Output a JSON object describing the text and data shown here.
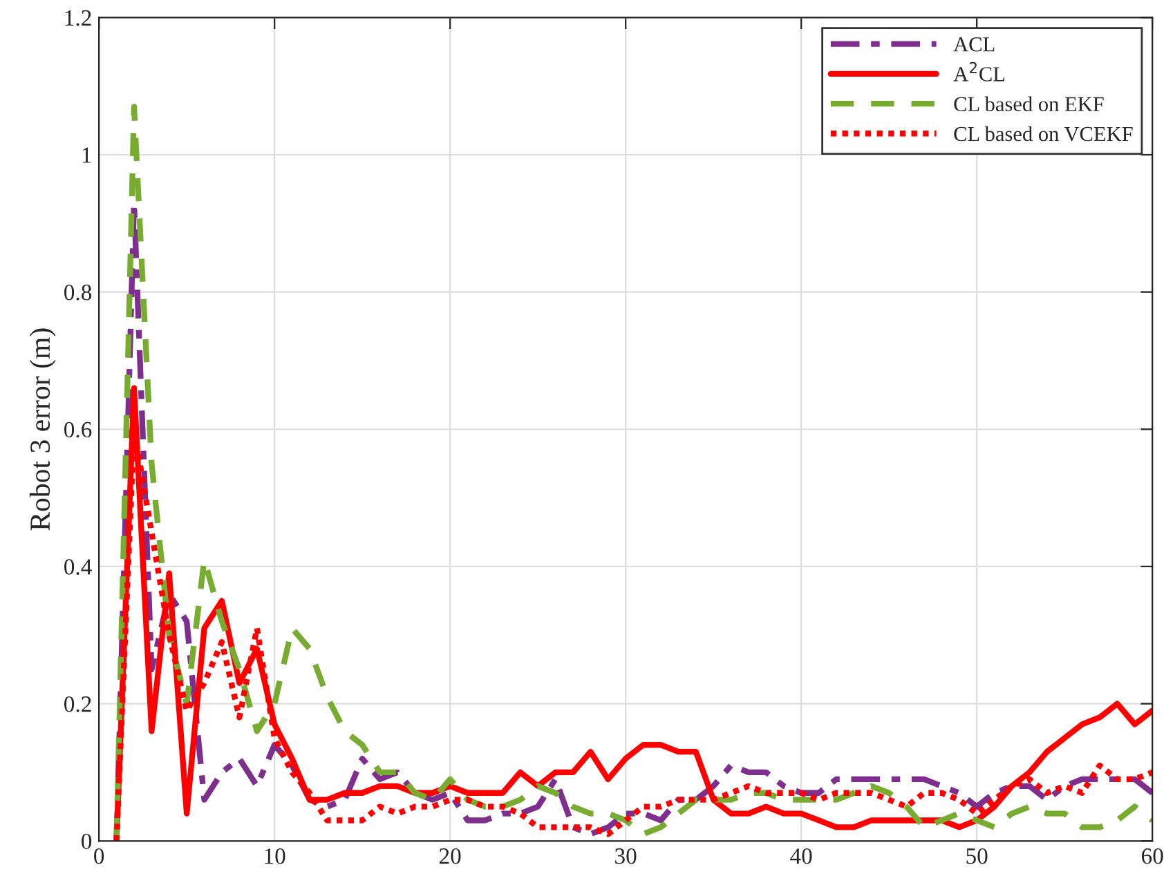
{
  "chart_data": {
    "type": "line",
    "ylabel": "Robot 3 error (m)",
    "x": [
      1,
      2,
      3,
      4,
      5,
      6,
      7,
      8,
      9,
      10,
      11,
      12,
      13,
      14,
      15,
      16,
      17,
      18,
      19,
      20,
      21,
      22,
      23,
      24,
      25,
      26,
      27,
      28,
      29,
      30,
      31,
      32,
      33,
      34,
      35,
      36,
      37,
      38,
      39,
      40,
      41,
      42,
      43,
      44,
      45,
      46,
      47,
      48,
      49,
      50,
      51,
      52,
      53,
      54,
      55,
      56,
      57,
      58,
      59,
      60
    ],
    "xlim": [
      0,
      60
    ],
    "xticks": [
      0,
      10,
      20,
      30,
      40,
      50,
      60
    ],
    "ylim": [
      0,
      1.2
    ],
    "yticks": [
      0,
      0.2,
      0.4,
      0.6,
      0.8,
      1,
      1.2
    ],
    "grid": true,
    "legend": "top right",
    "marker": "none",
    "series": [
      {
        "name": "ACL",
        "color": "#7e2f8e",
        "line_style": "dashdot",
        "values": [
          0.0,
          0.93,
          0.25,
          0.36,
          0.32,
          0.06,
          0.1,
          0.12,
          0.08,
          0.14,
          0.11,
          0.06,
          0.05,
          0.06,
          0.12,
          0.09,
          0.1,
          0.07,
          0.06,
          0.07,
          0.03,
          0.03,
          0.04,
          0.04,
          0.05,
          0.09,
          0.02,
          0.01,
          0.02,
          0.04,
          0.04,
          0.03,
          0.06,
          0.06,
          0.08,
          0.11,
          0.1,
          0.1,
          0.08,
          0.07,
          0.07,
          0.09,
          0.09,
          0.09,
          0.09,
          0.09,
          0.09,
          0.08,
          0.07,
          0.05,
          0.07,
          0.08,
          0.08,
          0.06,
          0.08,
          0.09,
          0.09,
          0.09,
          0.09,
          0.07
        ]
      },
      {
        "name": "A$^{2}$CL",
        "color": "#ff0000",
        "line_style": "solid",
        "values": [
          0.0,
          0.66,
          0.16,
          0.39,
          0.04,
          0.31,
          0.35,
          0.23,
          0.28,
          0.17,
          0.12,
          0.06,
          0.06,
          0.07,
          0.07,
          0.08,
          0.08,
          0.07,
          0.07,
          0.08,
          0.07,
          0.07,
          0.07,
          0.1,
          0.08,
          0.1,
          0.1,
          0.13,
          0.09,
          0.12,
          0.14,
          0.14,
          0.13,
          0.13,
          0.06,
          0.04,
          0.04,
          0.05,
          0.04,
          0.04,
          0.03,
          0.02,
          0.02,
          0.03,
          0.03,
          0.03,
          0.03,
          0.03,
          0.02,
          0.03,
          0.05,
          0.08,
          0.1,
          0.13,
          0.15,
          0.17,
          0.18,
          0.2,
          0.17,
          0.19
        ]
      },
      {
        "name": "CL based on EKF",
        "color": "#77ac30",
        "line_style": "dashed",
        "values": [
          0.0,
          1.07,
          0.55,
          0.3,
          0.2,
          0.41,
          0.32,
          0.25,
          0.16,
          0.2,
          0.31,
          0.28,
          0.21,
          0.16,
          0.14,
          0.1,
          0.1,
          0.07,
          0.06,
          0.09,
          0.06,
          0.05,
          0.05,
          0.06,
          0.08,
          0.07,
          0.05,
          0.04,
          0.04,
          0.03,
          0.01,
          0.02,
          0.04,
          0.06,
          0.06,
          0.06,
          0.07,
          0.07,
          0.06,
          0.06,
          0.06,
          0.06,
          0.07,
          0.08,
          0.07,
          0.05,
          0.02,
          0.03,
          0.04,
          0.03,
          0.02,
          0.04,
          0.05,
          0.04,
          0.04,
          0.02,
          0.02,
          0.03,
          0.05,
          0.03
        ]
      },
      {
        "name": "CL based on VCEKF",
        "color": "#ff0000",
        "line_style": "dotted",
        "values": [
          0.0,
          0.6,
          0.45,
          0.3,
          0.19,
          0.23,
          0.29,
          0.18,
          0.31,
          0.15,
          0.1,
          0.07,
          0.03,
          0.03,
          0.03,
          0.05,
          0.04,
          0.05,
          0.05,
          0.06,
          0.06,
          0.05,
          0.05,
          0.04,
          0.02,
          0.02,
          0.02,
          0.02,
          0.01,
          0.03,
          0.05,
          0.05,
          0.06,
          0.06,
          0.06,
          0.07,
          0.08,
          0.07,
          0.07,
          0.07,
          0.06,
          0.07,
          0.07,
          0.07,
          0.06,
          0.05,
          0.07,
          0.07,
          0.06,
          0.04,
          0.06,
          0.08,
          0.09,
          0.07,
          0.08,
          0.07,
          0.11,
          0.09,
          0.09,
          0.1
        ]
      }
    ]
  }
}
